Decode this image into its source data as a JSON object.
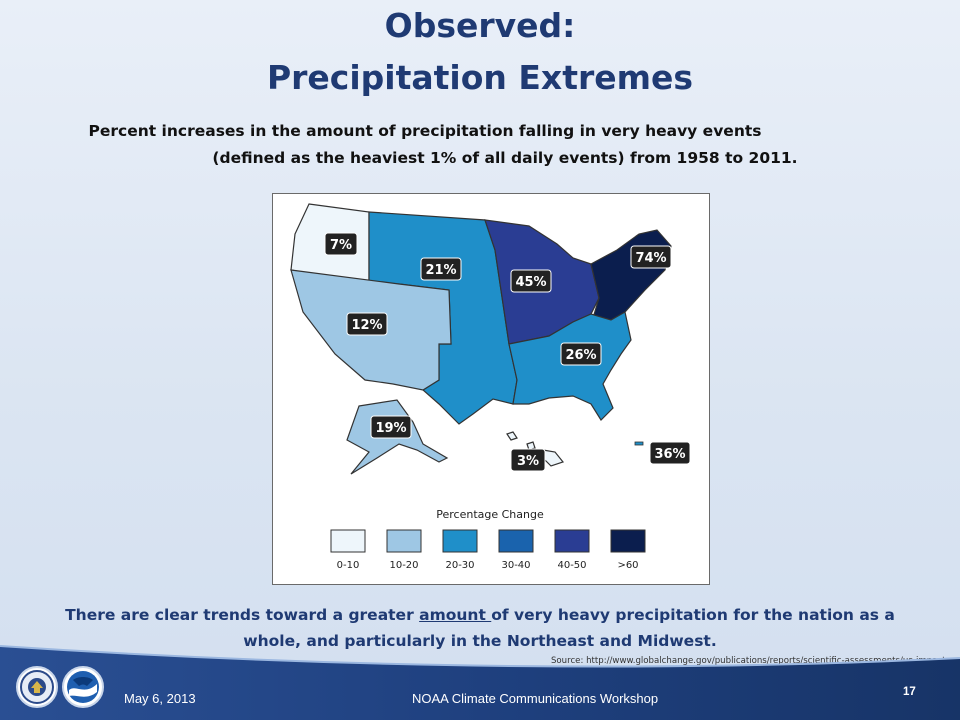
{
  "title": {
    "line1": "Observed:",
    "line2": "Precipitation Extremes"
  },
  "subtitle": {
    "line1": "Percent increases in the amount of precipitation falling in very heavy events",
    "line2": "(defined as the heaviest 1% of all daily events) from 1958 to 2011."
  },
  "map": {
    "legend_title": "Percentage Change",
    "legend": [
      {
        "label": "0-10",
        "color": "#eef6fb"
      },
      {
        "label": "10-20",
        "color": "#9ec7e4"
      },
      {
        "label": "20-30",
        "color": "#1f8fc9"
      },
      {
        "label": "30-40",
        "color": "#1a63ad"
      },
      {
        "label": "40-50",
        "color": "#2a3d93"
      },
      {
        "label": ">60",
        "color": "#0b1e4e"
      }
    ],
    "regions": [
      {
        "name": "Northwest",
        "value": "7%"
      },
      {
        "name": "Great Plains",
        "value": "21%"
      },
      {
        "name": "Southwest",
        "value": "12%"
      },
      {
        "name": "Midwest",
        "value": "45%"
      },
      {
        "name": "Northeast",
        "value": "74%"
      },
      {
        "name": "Southeast",
        "value": "26%"
      },
      {
        "name": "Alaska",
        "value": "19%"
      },
      {
        "name": "Hawaii",
        "value": "3%"
      },
      {
        "name": "Puerto Rico",
        "value": "36%"
      }
    ]
  },
  "caption": {
    "part1": "There are clear trends toward a greater ",
    "underlined": "amount ",
    "part2": "of very heavy precipitation for  the nation as a",
    "line2": "whole, and particularly in the Northeast and Midwest."
  },
  "source": "Source: http://www.globalchange.gov/publications/reports/scientific-assessments/us-impacts",
  "footer": {
    "date": "May 6, 2013",
    "event": "NOAA Climate Communications Workshop",
    "page": "17"
  },
  "colors": {
    "title": "#1f3a73",
    "footer": "#1e3f7d"
  }
}
